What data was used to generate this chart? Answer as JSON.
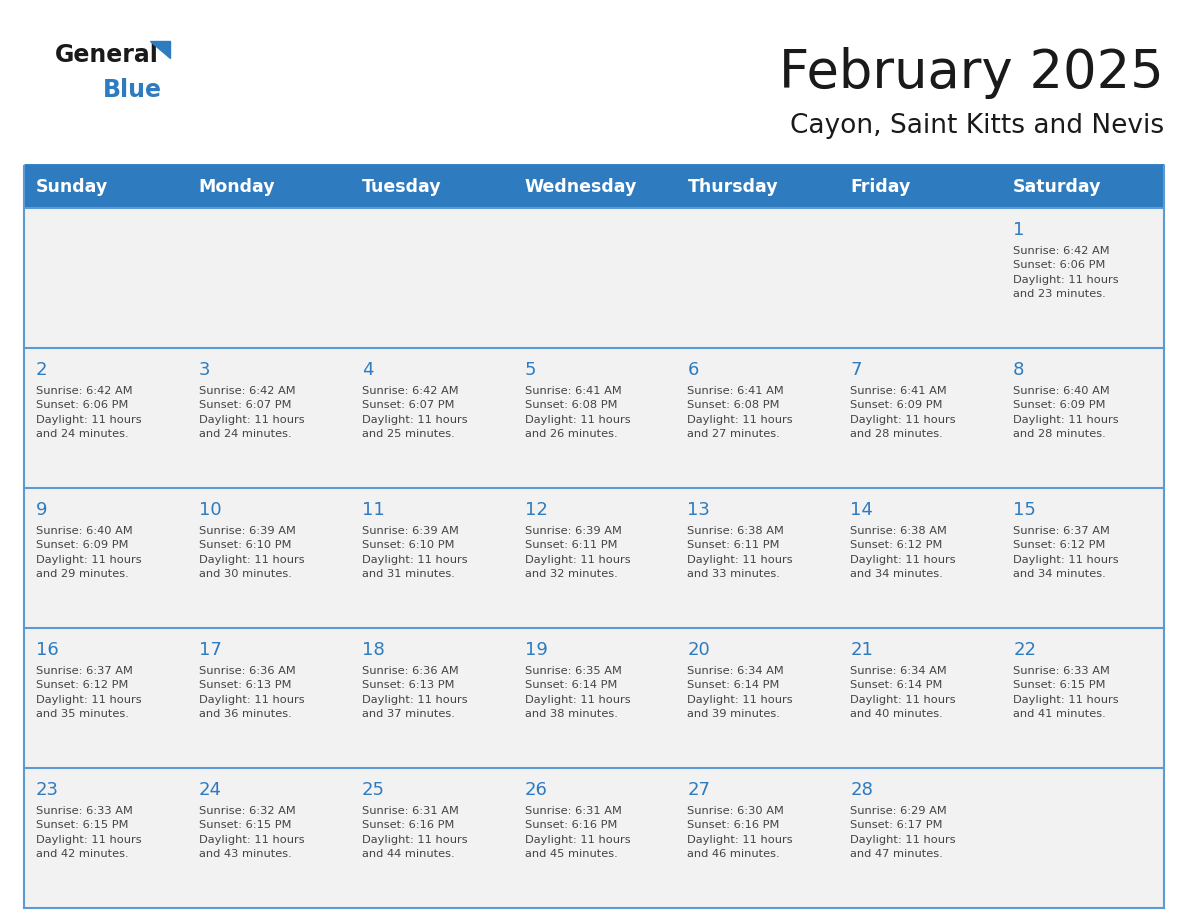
{
  "title": "February 2025",
  "subtitle": "Cayon, Saint Kitts and Nevis",
  "header_bg": "#2E7BBF",
  "header_text_color": "#FFFFFF",
  "cell_bg_light": "#F2F2F2",
  "cell_bg_white": "#FFFFFF",
  "day_number_color": "#2E7BBF",
  "cell_text_color": "#444444",
  "border_color": "#2E7BBF",
  "line_color": "#5B9BD5",
  "days_of_week": [
    "Sunday",
    "Monday",
    "Tuesday",
    "Wednesday",
    "Thursday",
    "Friday",
    "Saturday"
  ],
  "weeks": [
    [
      {
        "day": null,
        "info": null
      },
      {
        "day": null,
        "info": null
      },
      {
        "day": null,
        "info": null
      },
      {
        "day": null,
        "info": null
      },
      {
        "day": null,
        "info": null
      },
      {
        "day": null,
        "info": null
      },
      {
        "day": 1,
        "info": "Sunrise: 6:42 AM\nSunset: 6:06 PM\nDaylight: 11 hours\nand 23 minutes."
      }
    ],
    [
      {
        "day": 2,
        "info": "Sunrise: 6:42 AM\nSunset: 6:06 PM\nDaylight: 11 hours\nand 24 minutes."
      },
      {
        "day": 3,
        "info": "Sunrise: 6:42 AM\nSunset: 6:07 PM\nDaylight: 11 hours\nand 24 minutes."
      },
      {
        "day": 4,
        "info": "Sunrise: 6:42 AM\nSunset: 6:07 PM\nDaylight: 11 hours\nand 25 minutes."
      },
      {
        "day": 5,
        "info": "Sunrise: 6:41 AM\nSunset: 6:08 PM\nDaylight: 11 hours\nand 26 minutes."
      },
      {
        "day": 6,
        "info": "Sunrise: 6:41 AM\nSunset: 6:08 PM\nDaylight: 11 hours\nand 27 minutes."
      },
      {
        "day": 7,
        "info": "Sunrise: 6:41 AM\nSunset: 6:09 PM\nDaylight: 11 hours\nand 28 minutes."
      },
      {
        "day": 8,
        "info": "Sunrise: 6:40 AM\nSunset: 6:09 PM\nDaylight: 11 hours\nand 28 minutes."
      }
    ],
    [
      {
        "day": 9,
        "info": "Sunrise: 6:40 AM\nSunset: 6:09 PM\nDaylight: 11 hours\nand 29 minutes."
      },
      {
        "day": 10,
        "info": "Sunrise: 6:39 AM\nSunset: 6:10 PM\nDaylight: 11 hours\nand 30 minutes."
      },
      {
        "day": 11,
        "info": "Sunrise: 6:39 AM\nSunset: 6:10 PM\nDaylight: 11 hours\nand 31 minutes."
      },
      {
        "day": 12,
        "info": "Sunrise: 6:39 AM\nSunset: 6:11 PM\nDaylight: 11 hours\nand 32 minutes."
      },
      {
        "day": 13,
        "info": "Sunrise: 6:38 AM\nSunset: 6:11 PM\nDaylight: 11 hours\nand 33 minutes."
      },
      {
        "day": 14,
        "info": "Sunrise: 6:38 AM\nSunset: 6:12 PM\nDaylight: 11 hours\nand 34 minutes."
      },
      {
        "day": 15,
        "info": "Sunrise: 6:37 AM\nSunset: 6:12 PM\nDaylight: 11 hours\nand 34 minutes."
      }
    ],
    [
      {
        "day": 16,
        "info": "Sunrise: 6:37 AM\nSunset: 6:12 PM\nDaylight: 11 hours\nand 35 minutes."
      },
      {
        "day": 17,
        "info": "Sunrise: 6:36 AM\nSunset: 6:13 PM\nDaylight: 11 hours\nand 36 minutes."
      },
      {
        "day": 18,
        "info": "Sunrise: 6:36 AM\nSunset: 6:13 PM\nDaylight: 11 hours\nand 37 minutes."
      },
      {
        "day": 19,
        "info": "Sunrise: 6:35 AM\nSunset: 6:14 PM\nDaylight: 11 hours\nand 38 minutes."
      },
      {
        "day": 20,
        "info": "Sunrise: 6:34 AM\nSunset: 6:14 PM\nDaylight: 11 hours\nand 39 minutes."
      },
      {
        "day": 21,
        "info": "Sunrise: 6:34 AM\nSunset: 6:14 PM\nDaylight: 11 hours\nand 40 minutes."
      },
      {
        "day": 22,
        "info": "Sunrise: 6:33 AM\nSunset: 6:15 PM\nDaylight: 11 hours\nand 41 minutes."
      }
    ],
    [
      {
        "day": 23,
        "info": "Sunrise: 6:33 AM\nSunset: 6:15 PM\nDaylight: 11 hours\nand 42 minutes."
      },
      {
        "day": 24,
        "info": "Sunrise: 6:32 AM\nSunset: 6:15 PM\nDaylight: 11 hours\nand 43 minutes."
      },
      {
        "day": 25,
        "info": "Sunrise: 6:31 AM\nSunset: 6:16 PM\nDaylight: 11 hours\nand 44 minutes."
      },
      {
        "day": 26,
        "info": "Sunrise: 6:31 AM\nSunset: 6:16 PM\nDaylight: 11 hours\nand 45 minutes."
      },
      {
        "day": 27,
        "info": "Sunrise: 6:30 AM\nSunset: 6:16 PM\nDaylight: 11 hours\nand 46 minutes."
      },
      {
        "day": 28,
        "info": "Sunrise: 6:29 AM\nSunset: 6:17 PM\nDaylight: 11 hours\nand 47 minutes."
      },
      {
        "day": null,
        "info": null
      }
    ]
  ]
}
